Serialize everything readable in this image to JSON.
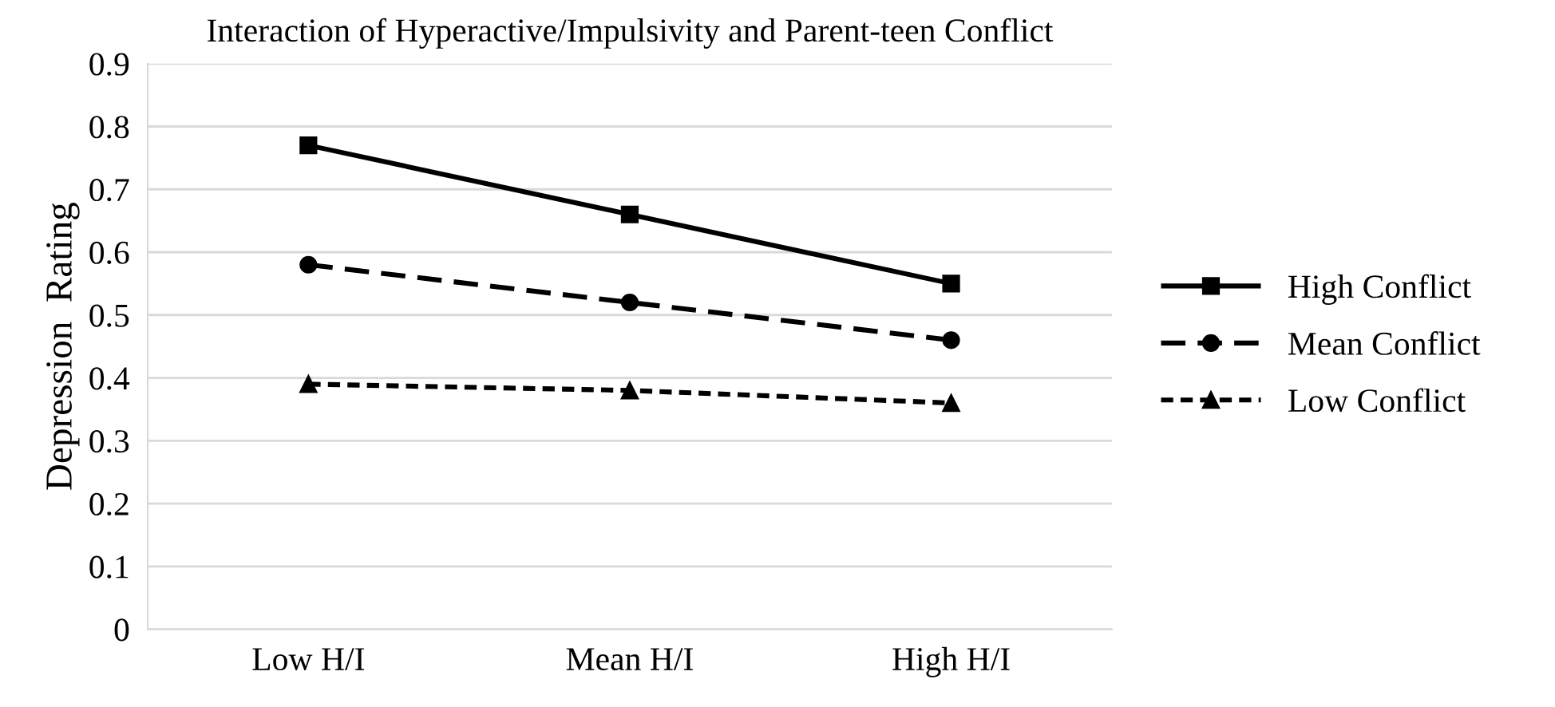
{
  "chart_data": {
    "type": "line",
    "title": "Interaction of Hyperactive/Impulsivity and Parent-teen Conflict",
    "ylabel": "Depression  Rating",
    "categories": [
      "Low H/I",
      "Mean H/I",
      "High H/I"
    ],
    "series": [
      {
        "name": "High Conflict",
        "color": "#000000",
        "values": [
          0.77,
          0.66,
          0.55
        ],
        "marker": "square",
        "line_style": "solid"
      },
      {
        "name": "Mean Conflict",
        "color": "#000000",
        "values": [
          0.58,
          0.52,
          0.46
        ],
        "marker": "circle",
        "line_style": "dashed"
      },
      {
        "name": "Low Conflict",
        "color": "#000000",
        "values": [
          0.39,
          0.38,
          0.36
        ],
        "marker": "triangle",
        "line_style": "dotted"
      }
    ],
    "ylim": [
      0,
      0.9
    ],
    "yticks": [
      0,
      0.1,
      0.2,
      0.3,
      0.4,
      0.5,
      0.6,
      0.7,
      0.8,
      0.9
    ],
    "grid": "y",
    "legend": "right"
  }
}
